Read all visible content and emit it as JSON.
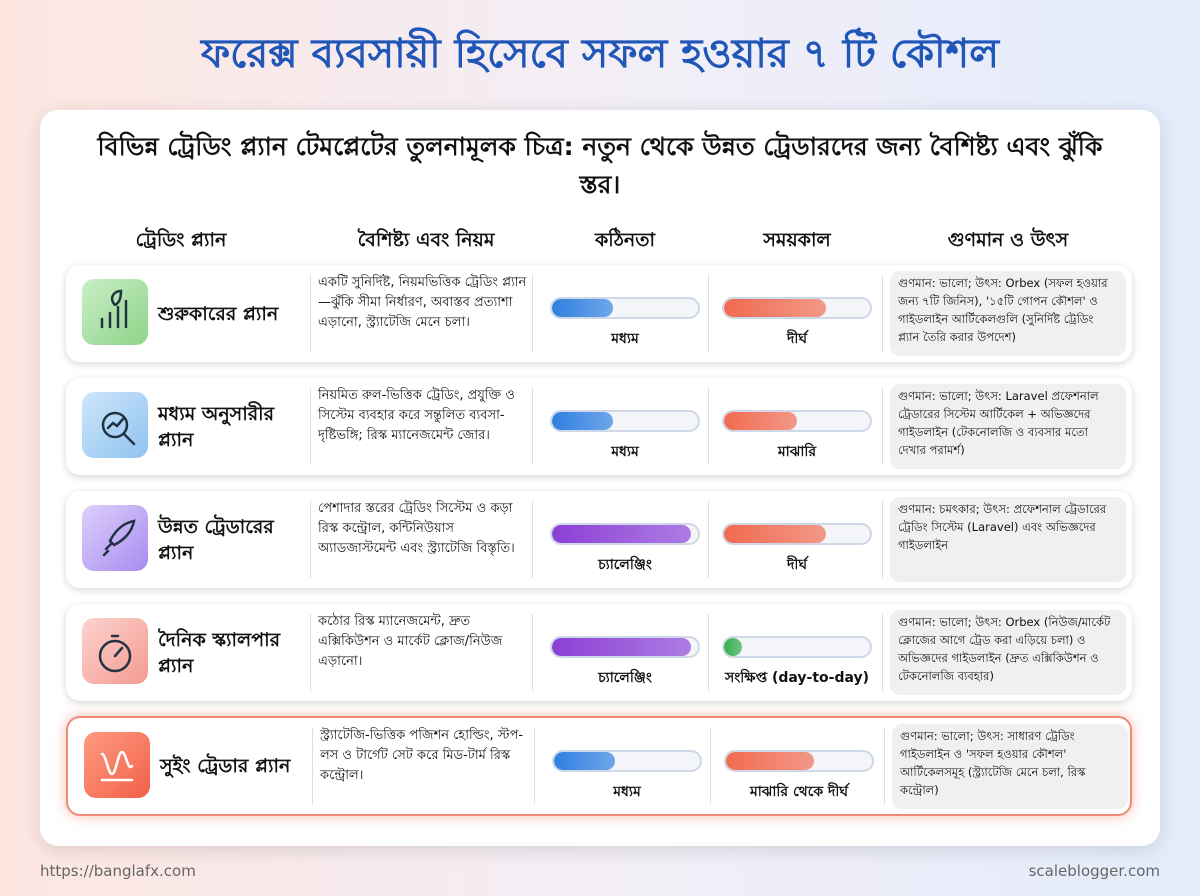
{
  "header": {
    "title": "ফরেক্স ব্যবসায়ী হিসেবে সফল হওয়ার ৭ টি কৌশল",
    "subtitle": "বিভিন্ন ট্রেডিং প্ল্যান টেমপ্লেটের তুলনামূলক চিত্র: নতুন থেকে উন্নত ট্রেডারদের জন্য বৈশিষ্ট্য এবং ঝুঁকি স্তর।"
  },
  "table": {
    "columns": [
      "ট্রেডিং প্ল্যান",
      "বৈশিষ্ট্য এবং নিয়ম",
      "কঠিনতা",
      "সময়কাল",
      "গুণমান ও উৎস"
    ],
    "rows": [
      [
        "শুরুকারের প্ল্যান",
        "একটি সুনির্দিষ্ট, নিয়মভিত্তিক ট্রেডিং প্ল্যান—ঝুঁকি সীমা নির্ধারণ, অবাস্তব প্রত্যাশা এড়ানো, স্ট্র্যাটেজি মেনে চলা।",
        "মধ্যম",
        "দীর্ঘ",
        "গুণমান: ভালো; উৎস: Orbex (সফল হওয়ার জন্য ৭টি জিনিস), '১৫টি গোপন কৌশল' ও গাইডলাইন আর্টিকেলগুলি (সুনির্দিষ্ট ট্রেডিং প্ল্যান তৈরি করার উপদেশ)"
      ],
      [
        "মধ্যম অনুসারীর প্ল্যান",
        "নিয়মিত রুল-ভিত্তিক ট্রেডিং, প্রযুক্তি ও সিস্টেম ব্যবহার করে সন্তুলিত ব্যবসা-দৃষ্টিভঙ্গি; রিস্ক ম্যানেজমেন্ট জোর।",
        "মধ্যম",
        "মাঝারি",
        "গুণমান: ভালো; উৎস: Laravel প্রফেশনাল ট্রেডারের সিস্টেম আর্টিকেল + অভিজ্ঞদের গাইডলাইন (টেকনোলজি ও ব্যবসার মতো দেখার পরামর্শ)"
      ],
      [
        "উন্নত ট্রেডারের প্ল্যান",
        "পেশাদার স্তরের ট্রেডিং সিস্টেম ও কড়া রিস্ক কন্ট্রোল, কন্টিনিউয়াস অ্যাডজাস্টমেন্ট এবং স্ট্র্যাটেজি বিস্তৃতি।",
        "চ্যালেঞ্জিং",
        "দীর্ঘ",
        "গুণমান: চমৎকার; উৎস: প্রফেশনাল ট্রেডারের ট্রেডিং সিস্টেম (Laravel) এবং অভিজ্ঞদের গাইডলাইন"
      ],
      [
        "দৈনিক স্ক্যালপার প্ল্যান",
        "কঠোর রিস্ক ম্যানেজমেন্ট, দ্রুত এক্সিকিউশন ও মার্কেট ক্লোজ/নিউজ এড়ানো।",
        "চ্যালেঞ্জিং",
        "সংক্ষিপ্ত (day-to-day)",
        "গুণমান: ভালো; উৎস: Orbex (নিউজ/মার্কেট ক্লোজের আগে ট্রেড করা এড়িয়ে চলা) ও অভিজ্ঞদের গাইডলাইন (দ্রুত এক্সিকিউশন ও টেকনোলজি ব্যবহার)"
      ],
      [
        "সুইং ট্রেডার প্ল্যান",
        "স্ট্র্যাটেজি-ভিত্তিক পজিশন হোল্ডিং, স্টপ-লস ও টার্গেট সেট করে মিড-টার্ম রিস্ক কন্ট্রোল।",
        "মধ্যম",
        "মাঝারি থেকে দীর্ঘ",
        "গুণমান: ভালো; উৎস: সাধারণ ট্রেডিং গাইডলাইন ও 'সফল হওয়ার কৌশল' আর্টিকেলসমূহ (স্ট্র্যাটেজি মেনে চলা, রিস্ক কন্ট্রোল)"
      ]
    ]
  },
  "footer": {
    "left": "https://banglafx.com",
    "right": "scaleblogger.com"
  }
}
